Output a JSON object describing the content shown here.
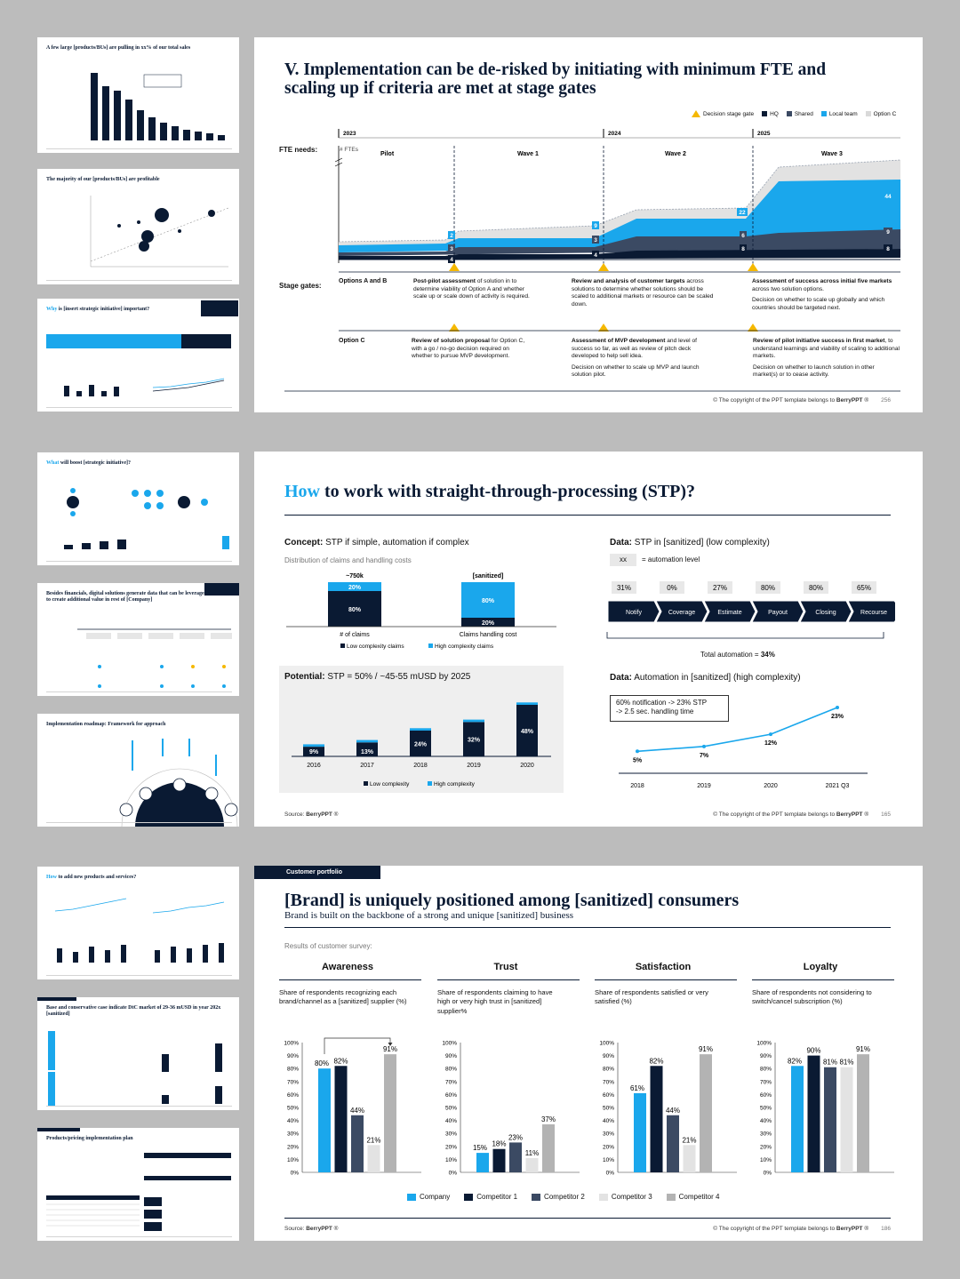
{
  "thumbs": [
    {
      "title": "A few large [products/BUs] are pulling in xx% of our total sales"
    },
    {
      "title": "The majority of our [products/BUs] are profitable"
    },
    {
      "title_hl": "Why",
      "title": " is [insert strategic initiative] important?"
    },
    {
      "title_hl": "What",
      "title": " will boost [strategic initiative]?"
    },
    {
      "title": "Besides financials, digital solutions generate data that can be leveraged to create additional value in rest of [Company]"
    },
    {
      "title": "Implementation roadmap: Framework for approach"
    },
    {
      "title_hl": "How",
      "title": " to add new products and services?"
    },
    {
      "title": "Base and conservative case indicate DtC market of 29-36 mUSD in year 202x [sanitized]"
    },
    {
      "title": "Products/pricing implementation plan"
    }
  ],
  "slide1": {
    "title": "V. Implementation can be de-risked by initiating with minimum FTE and scaling up if criteria are met at stage gates",
    "legend": [
      "Decision stage gate",
      "HQ",
      "Shared",
      "Local team",
      "Option C"
    ],
    "legend_colors": [
      "#f5b800",
      "#0a1a33",
      "#3b4a63",
      "#1aa7ec",
      "#d9d9d9"
    ],
    "fte_label": "FTE needs:",
    "fte_axis": "# FTEs",
    "years": [
      "2023",
      "2024",
      "2025"
    ],
    "phases": [
      "Pilot",
      "Wave 1",
      "Wave 2",
      "Wave 3"
    ],
    "values": {
      "hq": [
        "4",
        "4",
        "8",
        "8"
      ],
      "shared": [
        "3",
        "3",
        "6",
        "9"
      ],
      "local": [
        "2",
        "9",
        "22",
        "44"
      ]
    },
    "stage_gates_label": "Stage gates:",
    "option_ab": "Options A and B",
    "option_c": "Option C",
    "gates_ab": [
      {
        "bold": "Post-pilot assessment",
        "rest": " of solution in to determine viability of Option A and whether scale up or scale down of activity is required."
      },
      {
        "bold": "Review and analysis of customer targets",
        "rest": " across solutions to determine whether solutions should be scaled to additional markets or resource can be scaled down."
      },
      {
        "bold": "Assessment of success across initial five markets",
        "rest": " across two solution options.",
        "extra": "Decision on whether to scale up globally and which countries should be targeted next."
      }
    ],
    "gates_c": [
      {
        "bold": "Review of solution proposal",
        "rest": " for Option C, with a go / no-go decision required on whether to pursue MVP development."
      },
      {
        "bold": "Assessment of MVP development",
        "rest": " and level of success so far, as well as review of pitch deck developed to help sell idea.",
        "extra": "Decision on whether to scale up MVP and launch solution pilot."
      },
      {
        "bold": "Review of pilot initiative success in first market",
        "rest": ", to understand learnings and viability of scaling to additional markets.",
        "extra": "Decision on whether to launch solution in other market(s) or to cease activity."
      }
    ],
    "copyright_pre": "© The copyright of the PPT template belongs to ",
    "brand": "BerryPPT",
    "reg": " ®",
    "page": "256"
  },
  "slide2": {
    "title_hl": "How",
    "title": " to work with straight-through-processing (STP)?",
    "concept_bold": "Concept:",
    "concept": " STP if simple, automation if complex",
    "dist_label": "Distribution of claims and handling costs",
    "bar1_top": "~750k",
    "bar2_top": "[sanitized]",
    "bar1_hi": "20%",
    "bar1_lo": "80%",
    "bar2_hi": "80%",
    "bar2_lo": "20%",
    "bar1_label": "# of claims",
    "bar2_label": "Claims handling cost",
    "legend_low": "Low complexity claims",
    "legend_high": "High complexity claims",
    "potential_bold": "Potential:",
    "potential": " STP = 50% / ~45-55 mUSD by 2025",
    "chart_legend_low": "Low complexity",
    "chart_legend_high": "High complexity",
    "data1_bold": "Data:",
    "data1": " STP in [sanitized] (low complexity)",
    "auto_key": "xx",
    "auto_label": "= automation level",
    "steps": [
      {
        "pct": "31%",
        "name": "Notify"
      },
      {
        "pct": "0%",
        "name": "Coverage"
      },
      {
        "pct": "27%",
        "name": "Estimate"
      },
      {
        "pct": "80%",
        "name": "Payout"
      },
      {
        "pct": "80%",
        "name": "Closing"
      },
      {
        "pct": "65%",
        "name": "Recourse"
      }
    ],
    "total_pre": "Total automation = ",
    "total_val": "34%",
    "data2_bold": "Data:",
    "data2": " Automation in [sanitized] (high complexity)",
    "note1": "60% notification -> 23% STP",
    "note2": "-> 2.5 sec. handling time",
    "source_pre": "Source: ",
    "brand": "BerryPPT",
    "reg": " ®",
    "copyright_pre": "© The copyright of the PPT template belongs to ",
    "page": "165"
  },
  "slide3": {
    "tag": "Customer portfolio",
    "title": "[Brand] is uniquely positioned among [sanitized] consumers",
    "subtitle": "Brand is built on the backbone of a strong and unique [sanitized] business",
    "survey": "Results of customer survey:",
    "source_pre": "Source: ",
    "brand": "BerryPPT",
    "reg": " ®",
    "copyright_pre": "© The copyright of the PPT template belongs to ",
    "page": "186"
  },
  "chart_data": [
    {
      "type": "bar",
      "title": "Potential: STP = 50% / ~45-55 mUSD by 2025",
      "categories": [
        "2016",
        "2017",
        "2018",
        "2019",
        "2020"
      ],
      "series": [
        {
          "name": "Low complexity",
          "values": [
            9,
            13,
            24,
            32,
            48
          ]
        },
        {
          "name": "High complexity",
          "values": [
            1,
            1,
            1,
            1,
            1
          ]
        }
      ],
      "data_labels": [
        "9%",
        "13%",
        "24%",
        "32%",
        "48%"
      ],
      "colors": [
        "#0a1a33",
        "#1aa7ec"
      ]
    },
    {
      "type": "line",
      "title": "Data: Automation in [sanitized] (high complexity)",
      "categories": [
        "2018",
        "2019",
        "2020",
        "2021 Q3"
      ],
      "values": [
        5,
        7,
        12,
        23
      ],
      "data_labels": [
        "5%",
        "7%",
        "12%",
        "23%"
      ],
      "color": "#1aa7ec"
    },
    {
      "type": "bar",
      "ylim": [
        0,
        100
      ],
      "yticks": [
        "0%",
        "10%",
        "20%",
        "30%",
        "40%",
        "50%",
        "60%",
        "70%",
        "80%",
        "90%",
        "100%"
      ],
      "legend": [
        "Company",
        "Competitor 1",
        "Competitor 2",
        "Competitor 3",
        "Competitor 4"
      ],
      "colors": [
        "#1aa7ec",
        "#0a1a33",
        "#3b4a63",
        "#e3e3e3",
        "#b3b3b3"
      ],
      "panels": [
        {
          "title": "Awareness",
          "desc": "Share of respondents recognizing each brand/channel as a [sanitized] supplier (%)",
          "values": [
            80,
            82,
            44,
            21,
            91
          ]
        },
        {
          "title": "Trust",
          "desc": "Share of respondents claiming to have high or very high trust in [sanitized] supplier%",
          "values": [
            15,
            18,
            23,
            11,
            37
          ]
        },
        {
          "title": "Satisfaction",
          "desc": "Share of respondents satisfied or very satisfied (%)",
          "values": [
            61,
            82,
            44,
            21,
            91
          ]
        },
        {
          "title": "Loyalty",
          "desc": "Share of respondents not considering to switch/cancel subscription (%)",
          "values": [
            82,
            90,
            81,
            81,
            91
          ]
        }
      ]
    }
  ]
}
